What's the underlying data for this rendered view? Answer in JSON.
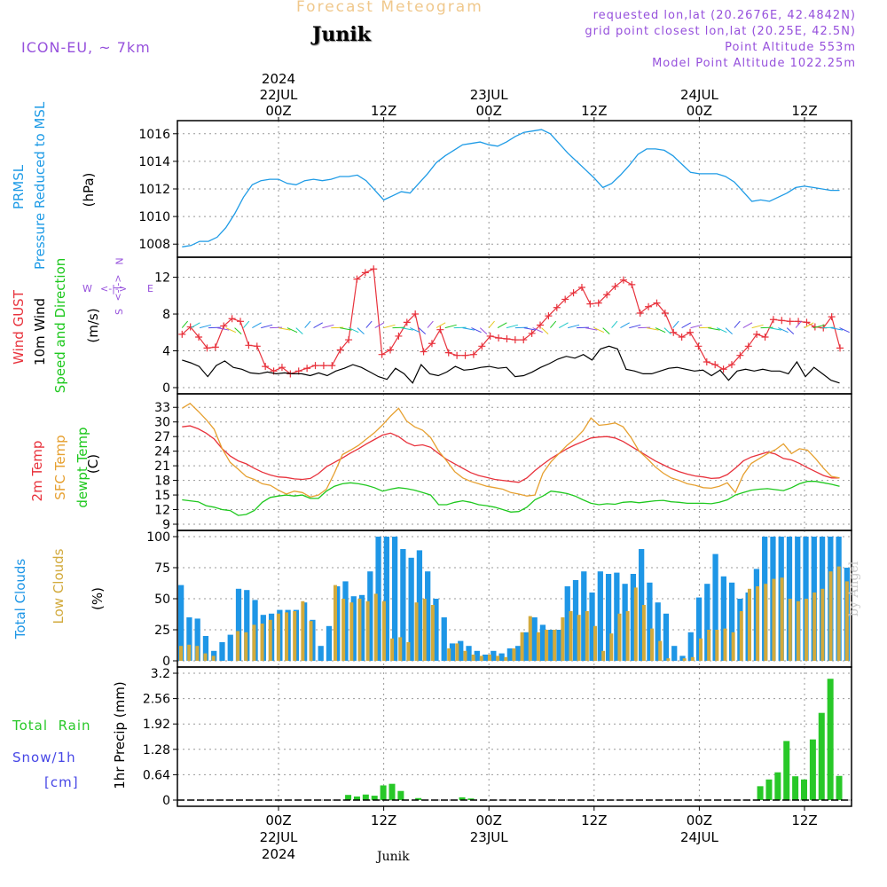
{
  "header": {
    "title": "Forecast Meteogram",
    "location": "Junik",
    "model": "ICON-EU, ~ 7km",
    "requested": "requested lon,lat (20.2676E, 42.4842N)",
    "gridpoint": "grid point closest lon,lat (20.25E, 42.5N)",
    "point_altitude": "Point Altitude 553m",
    "model_altitude": "Model Point Altitude 1022.25m",
    "footer_location": "Junik",
    "watermark": "by Angel"
  },
  "colors": {
    "pressure": "#1e9be6",
    "gust": "#e8323c",
    "wind": "#000000",
    "t2m": "#e8323c",
    "sfc": "#e6a030",
    "dewpt": "#1ec81e",
    "total_clouds": "#1e96e6",
    "low_clouds": "#d2aa3c",
    "rain": "#28c828",
    "snow": "#4646e6",
    "header_title": "#f0c88c",
    "meta": "#9650dc"
  },
  "panel_labels": {
    "pressure": [
      "PRMSL",
      "Pressure Reduced to MSL",
      "(hPa)"
    ],
    "wind": [
      "Wind GUST",
      "10m Wind",
      "Speed and Direction",
      "(m/s)"
    ],
    "temp": [
      "2m Temp",
      "SFC Temp",
      "dewpt Temp",
      "(C)"
    ],
    "cloud": [
      "Total Clouds",
      "Low Clouds",
      "(%)"
    ],
    "precip": [
      "Total  Rain",
      "Snow/1h",
      "[cm]",
      "1hr Precip (mm)"
    ]
  },
  "compass": {
    "n": "N",
    "s": "S",
    "w": "W",
    "e": "E",
    "ns": "<-|->",
    "we": "<-|->"
  },
  "time_axis": {
    "top_labels": [
      {
        "h": 0,
        "lines": [
          "2024",
          "22JUL",
          "00Z"
        ]
      },
      {
        "h": 12,
        "lines": [
          "12Z"
        ]
      },
      {
        "h": 24,
        "lines": [
          "23JUL",
          "00Z"
        ]
      },
      {
        "h": 36,
        "lines": [
          "12Z"
        ]
      },
      {
        "h": 48,
        "lines": [
          "24JUL",
          "00Z"
        ]
      },
      {
        "h": 60,
        "lines": [
          "12Z"
        ]
      }
    ],
    "bottom_labels": [
      {
        "h": 0,
        "lines": [
          "00Z",
          "22JUL",
          "2024"
        ]
      },
      {
        "h": 12,
        "lines": [
          "12Z"
        ]
      },
      {
        "h": 24,
        "lines": [
          "00Z",
          "23JUL"
        ]
      },
      {
        "h": 36,
        "lines": [
          "12Z"
        ]
      },
      {
        "h": 48,
        "lines": [
          "00Z",
          "24JUL"
        ]
      },
      {
        "h": 60,
        "lines": [
          "12Z"
        ]
      }
    ]
  },
  "chart_data": [
    {
      "type": "line",
      "panel": "pressure",
      "ylabel": "(hPa)",
      "x_hours": [
        -11,
        -10,
        -9,
        -8,
        -7,
        -6,
        -5,
        -4,
        -3,
        -2,
        -1,
        0,
        1,
        2,
        3,
        4,
        5,
        6,
        7,
        8,
        9,
        10,
        11,
        12,
        13,
        14,
        15,
        16,
        17,
        18,
        19,
        20,
        21,
        22,
        23,
        24,
        25,
        26,
        27,
        28,
        29,
        30,
        31,
        32,
        33,
        34,
        35,
        36,
        37,
        38,
        39,
        40,
        41,
        42,
        43,
        44,
        45,
        46,
        47,
        48,
        49,
        50,
        51,
        52,
        53,
        54,
        55,
        56,
        57,
        58,
        59,
        60,
        61,
        62,
        63,
        64
      ],
      "yticks": [
        1008,
        1010,
        1012,
        1014,
        1016
      ],
      "ylim": [
        1007.5,
        1016.5
      ],
      "series": [
        {
          "name": "PRMSL",
          "values": [
            1007.8,
            1007.9,
            1008.2,
            1008.2,
            1008.5,
            1009.2,
            1010.2,
            1011.4,
            1012.3,
            1012.6,
            1012.7,
            1012.7,
            1012.4,
            1012.3,
            1012.6,
            1012.7,
            1012.6,
            1012.7,
            1012.9,
            1012.9,
            1013.0,
            1012.6,
            1011.9,
            1011.2,
            1011.5,
            1011.8,
            1011.7,
            1012.4,
            1013.1,
            1013.9,
            1014.4,
            1014.8,
            1015.2,
            1015.3,
            1015.4,
            1015.2,
            1015.1,
            1015.4,
            1015.8,
            1016.1,
            1016.2,
            1016.3,
            1016.0,
            1015.3,
            1014.6,
            1014.0,
            1013.4,
            1012.8,
            1012.1,
            1012.4,
            1013.0,
            1013.7,
            1014.5,
            1014.9,
            1014.9,
            1014.8,
            1014.4,
            1013.8,
            1013.2,
            1013.1,
            1013.1,
            1013.1,
            1012.9,
            1012.5,
            1011.8,
            1011.1,
            1011.2,
            1011.1,
            1011.4,
            1011.7,
            1012.1,
            1012.2,
            1012.1,
            1012.0,
            1011.9,
            1011.9
          ]
        }
      ]
    },
    {
      "type": "line",
      "panel": "wind",
      "ylabel": "(m/s)",
      "yticks": [
        0,
        4,
        8,
        12
      ],
      "ylim": [
        0,
        13.5
      ],
      "series": [
        {
          "name": "Wind GUST",
          "values": [
            5.8,
            6.6,
            5.5,
            4.3,
            4.4,
            6.7,
            7.5,
            7.2,
            4.6,
            4.5,
            2.3,
            1.8,
            2.2,
            1.5,
            1.8,
            2.1,
            2.4,
            2.4,
            2.4,
            4.1,
            5.2,
            11.8,
            12.5,
            12.9,
            3.6,
            4.1,
            5.6,
            7.1,
            8.0,
            3.9,
            4.8,
            6.3,
            3.8,
            3.5,
            3.5,
            3.6,
            4.5,
            5.6,
            5.4,
            5.3,
            5.2,
            5.2,
            5.9,
            6.8,
            7.8,
            8.7,
            9.6,
            10.3,
            10.9,
            9.1,
            9.2,
            10.1,
            11.0,
            11.7,
            11.2,
            8.1,
            8.8,
            9.2,
            8.1,
            6.0,
            5.5,
            6.0,
            4.5,
            2.8,
            2.5,
            2.0,
            2.5,
            3.5,
            4.5,
            5.8,
            5.5,
            7.4,
            7.3,
            7.2,
            7.2,
            7.1,
            6.6,
            6.5,
            7.7,
            4.3
          ]
        },
        {
          "name": "10m Wind",
          "values": [
            3.0,
            2.7,
            2.3,
            1.2,
            2.4,
            2.9,
            2.2,
            2.0,
            1.6,
            1.5,
            1.7,
            1.5,
            1.6,
            1.5,
            1.5,
            1.3,
            1.6,
            1.3,
            1.8,
            2.1,
            2.5,
            2.2,
            1.7,
            1.2,
            0.9,
            2.1,
            1.5,
            0.5,
            2.5,
            1.5,
            1.3,
            1.7,
            2.3,
            1.9,
            2.0,
            2.2,
            2.3,
            2.1,
            2.2,
            1.2,
            1.3,
            1.7,
            2.2,
            2.6,
            3.1,
            3.4,
            3.2,
            3.6,
            3.0,
            4.2,
            4.5,
            4.2,
            2.0,
            1.8,
            1.5,
            1.5,
            1.8,
            2.1,
            2.2,
            2.0,
            1.8,
            1.9,
            1.3,
            1.9,
            0.8,
            1.8,
            2.0,
            1.8,
            2.0,
            1.8,
            1.8,
            1.5,
            2.8,
            1.2,
            2.2,
            1.5,
            0.8,
            0.5
          ]
        }
      ],
      "gust_x_hours_start": -11,
      "wind_x_hours_start": -11
    },
    {
      "type": "line",
      "panel": "temp",
      "ylabel": "(C)",
      "yticks": [
        9,
        12,
        15,
        18,
        21,
        24,
        27,
        30,
        33
      ],
      "ylim": [
        9,
        34.5
      ],
      "x_hours_start": -11,
      "series": [
        {
          "name": "2m Temp",
          "values": [
            29.0,
            29.2,
            28.6,
            27.7,
            26.5,
            24.5,
            23.0,
            22.0,
            21.4,
            20.5,
            19.7,
            19.1,
            18.7,
            18.6,
            18.3,
            18.2,
            18.4,
            19.4,
            20.8,
            21.7,
            22.6,
            23.6,
            24.5,
            25.5,
            26.4,
            27.3,
            27.7,
            27.0,
            25.8,
            25.1,
            25.3,
            24.8,
            23.5,
            22.3,
            21.4,
            20.5,
            19.6,
            19.0,
            18.6,
            18.2,
            18.0,
            17.8,
            17.6,
            18.5,
            20.0,
            21.3,
            22.5,
            23.5,
            24.5,
            25.3,
            26.0,
            26.7,
            26.9,
            27.0,
            26.7,
            26.0,
            25.0,
            24.0,
            23.0,
            22.0,
            21.2,
            20.4,
            19.8,
            19.3,
            18.9,
            18.7,
            18.4,
            18.5,
            19.2,
            20.5,
            22.0,
            22.8,
            23.3,
            23.8,
            23.4,
            22.5,
            22.2,
            21.5,
            20.6,
            19.8,
            19.0,
            18.5,
            18.5
          ]
        },
        {
          "name": "SFC Temp",
          "values": [
            32.8,
            33.8,
            32.2,
            30.5,
            28.5,
            24.5,
            21.7,
            20.3,
            18.8,
            18.2,
            17.3,
            17.0,
            16.0,
            15.2,
            15.8,
            15.5,
            14.6,
            15.0,
            16.2,
            19.5,
            23.3,
            24.2,
            25.2,
            26.5,
            27.8,
            29.4,
            31.2,
            32.8,
            30.2,
            29.0,
            28.3,
            26.8,
            24.0,
            22.0,
            19.8,
            18.5,
            17.8,
            17.3,
            16.8,
            16.5,
            16.2,
            15.5,
            15.2,
            14.8,
            15.0,
            19.5,
            21.8,
            23.5,
            25.2,
            26.5,
            28.2,
            30.8,
            29.3,
            29.5,
            29.8,
            29.0,
            26.8,
            24.0,
            22.5,
            20.8,
            19.5,
            18.5,
            18.0,
            17.3,
            17.0,
            16.5,
            16.4,
            16.8,
            17.5,
            15.5,
            19.2,
            21.5,
            22.5,
            23.5,
            24.3,
            25.5,
            23.5,
            24.5,
            24.2,
            22.5,
            20.5,
            18.8,
            18.5
          ]
        },
        {
          "name": "dewpt Temp",
          "values": [
            14.0,
            13.8,
            13.6,
            12.8,
            12.5,
            12.0,
            11.8,
            10.8,
            11.0,
            11.8,
            13.5,
            14.5,
            14.8,
            15.0,
            14.8,
            15.0,
            14.3,
            14.3,
            15.8,
            16.8,
            17.3,
            17.5,
            17.3,
            17.0,
            16.5,
            15.8,
            16.2,
            16.5,
            16.3,
            16.0,
            15.5,
            15.0,
            13.0,
            13.0,
            13.5,
            13.8,
            13.5,
            13.0,
            12.8,
            12.5,
            12.0,
            11.5,
            11.6,
            12.5,
            14.0,
            14.8,
            15.8,
            15.6,
            15.3,
            14.8,
            14.0,
            13.3,
            13.0,
            13.2,
            13.1,
            13.5,
            13.6,
            13.4,
            13.6,
            13.8,
            13.9,
            13.6,
            13.5,
            13.3,
            13.3,
            13.3,
            13.2,
            13.5,
            14.0,
            15.0,
            15.5,
            16.0,
            16.2,
            16.3,
            16.1,
            15.9,
            16.5,
            17.3,
            17.8,
            17.8,
            17.5,
            17.2,
            16.8
          ]
        }
      ]
    },
    {
      "type": "bar",
      "panel": "cloud",
      "ylabel": "(%)",
      "yticks": [
        0,
        25,
        50,
        75,
        100
      ],
      "ylim": [
        0,
        100
      ],
      "x_hours_start": -11,
      "series": [
        {
          "name": "Total Clouds",
          "values": [
            61,
            35,
            34,
            20,
            8,
            15,
            21,
            58,
            57,
            49,
            37,
            38,
            41,
            41,
            41,
            47,
            33,
            12,
            28,
            60,
            64,
            52,
            53,
            72,
            100,
            100,
            100,
            90,
            83,
            89,
            72,
            50,
            35,
            14,
            16,
            12,
            8,
            5,
            8,
            6,
            10,
            12,
            23,
            35,
            29,
            25,
            25,
            60,
            65,
            72,
            55,
            72,
            70,
            71,
            62,
            70,
            90,
            63,
            47,
            38,
            12,
            4,
            23,
            51,
            62,
            86,
            68,
            63,
            50,
            55,
            74,
            100,
            100,
            100,
            100,
            100,
            100,
            100,
            100,
            100,
            100,
            75
          ]
        },
        {
          "name": "Low Clouds",
          "values": [
            12,
            13,
            12,
            6,
            4,
            0,
            0,
            24,
            23,
            29,
            30,
            33,
            38,
            39,
            40,
            48,
            32,
            0,
            0,
            61,
            50,
            47,
            50,
            48,
            54,
            48,
            18,
            19,
            15,
            47,
            50,
            45,
            0,
            10,
            14,
            8,
            5,
            4,
            5,
            4,
            3,
            10,
            23,
            36,
            23,
            25,
            25,
            35,
            40,
            37,
            40,
            28,
            8,
            22,
            38,
            40,
            59,
            45,
            26,
            16,
            2,
            0,
            2,
            3,
            18,
            25,
            25,
            26,
            23,
            40,
            58,
            60,
            62,
            66,
            67,
            50,
            48,
            50,
            55,
            58,
            72,
            76,
            64
          ]
        }
      ]
    },
    {
      "type": "bar",
      "panel": "precip",
      "ylabel": "1hr Precip (mm)",
      "yticks": [
        0,
        0.64,
        1.28,
        1.92,
        2.56,
        3.2
      ],
      "ylim": [
        0,
        3.2
      ],
      "series": [
        {
          "name": "Total Rain",
          "x_hours": [
            8,
            9,
            10,
            11,
            12,
            13,
            14,
            16,
            21,
            22,
            55,
            56,
            57,
            58,
            59,
            60,
            61,
            62,
            63,
            64
          ],
          "values": [
            0.13,
            0.09,
            0.14,
            0.11,
            0.37,
            0.41,
            0.23,
            0.05,
            0.07,
            0.04,
            0.35,
            0.52,
            0.7,
            1.49,
            0.6,
            0.52,
            1.53,
            2.2,
            3.06,
            0.61
          ]
        },
        {
          "name": "Snow/1h",
          "values": []
        }
      ]
    }
  ]
}
